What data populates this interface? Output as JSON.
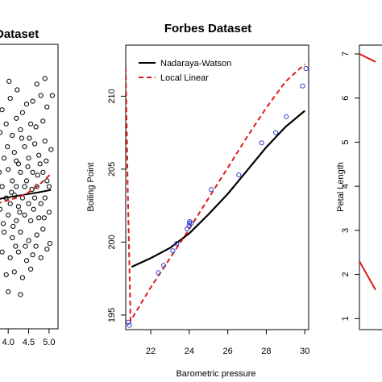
{
  "chart_data": [
    {
      "panel": "left",
      "type": "scatter",
      "title": "Dataset",
      "xlabel": "",
      "ylabel": "",
      "x_ticks": [
        "4.0",
        "4.5",
        "5.0"
      ],
      "x_tick_values": [
        4.0,
        4.5,
        5.0
      ],
      "xlim": [
        3.72,
        5.22
      ],
      "ylim": [
        0,
        1
      ],
      "series_colors": {
        "points": "#000000",
        "nw": "#000000",
        "ll": "#dd1a1a"
      },
      "points": [
        [
          4.9,
          0.88
        ],
        [
          4.8,
          0.82
        ],
        [
          4.95,
          0.78
        ],
        [
          4.85,
          0.73
        ],
        [
          4.7,
          0.86
        ],
        [
          4.6,
          0.8
        ],
        [
          4.45,
          0.79
        ],
        [
          4.55,
          0.72
        ],
        [
          4.35,
          0.76
        ],
        [
          4.3,
          0.7
        ],
        [
          4.2,
          0.74
        ],
        [
          4.1,
          0.68
        ],
        [
          4.05,
          0.81
        ],
        [
          3.95,
          0.72
        ],
        [
          3.85,
          0.77
        ],
        [
          3.8,
          0.69
        ],
        [
          4.15,
          0.62
        ],
        [
          4.25,
          0.58
        ],
        [
          4.4,
          0.64
        ],
        [
          4.5,
          0.6
        ],
        [
          4.65,
          0.65
        ],
        [
          4.75,
          0.61
        ],
        [
          4.9,
          0.66
        ],
        [
          5.05,
          0.63
        ],
        [
          3.9,
          0.6
        ],
        [
          4.0,
          0.56
        ],
        [
          4.1,
          0.52
        ],
        [
          4.2,
          0.5
        ],
        [
          4.3,
          0.55
        ],
        [
          4.45,
          0.52
        ],
        [
          4.6,
          0.55
        ],
        [
          4.7,
          0.5
        ],
        [
          4.85,
          0.55
        ],
        [
          4.95,
          0.52
        ],
        [
          5.0,
          0.5
        ],
        [
          3.85,
          0.5
        ],
        [
          3.95,
          0.46
        ],
        [
          4.05,
          0.44
        ],
        [
          4.15,
          0.47
        ],
        [
          4.25,
          0.43
        ],
        [
          4.35,
          0.46
        ],
        [
          4.5,
          0.44
        ],
        [
          4.65,
          0.46
        ],
        [
          4.8,
          0.44
        ],
        [
          4.9,
          0.46
        ],
        [
          3.8,
          0.42
        ],
        [
          4.0,
          0.4
        ],
        [
          4.2,
          0.38
        ],
        [
          4.4,
          0.4
        ],
        [
          4.55,
          0.38
        ],
        [
          4.75,
          0.39
        ],
        [
          5.0,
          0.41
        ],
        [
          3.9,
          0.34
        ],
        [
          4.1,
          0.32
        ],
        [
          4.3,
          0.34
        ],
        [
          4.5,
          0.31
        ],
        [
          4.7,
          0.33
        ],
        [
          4.85,
          0.35
        ],
        [
          5.02,
          0.3
        ],
        [
          3.85,
          0.27
        ],
        [
          4.05,
          0.25
        ],
        [
          4.25,
          0.27
        ],
        [
          4.45,
          0.24
        ],
        [
          4.6,
          0.26
        ],
        [
          4.8,
          0.25
        ],
        [
          4.95,
          0.28
        ],
        [
          3.95,
          0.19
        ],
        [
          4.15,
          0.2
        ],
        [
          4.35,
          0.18
        ],
        [
          4.55,
          0.21
        ],
        [
          4.0,
          0.13
        ],
        [
          4.3,
          0.12
        ],
        [
          4.2,
          0.59
        ],
        [
          4.4,
          0.5
        ],
        [
          4.62,
          0.42
        ],
        [
          3.98,
          0.64
        ],
        [
          4.12,
          0.36
        ],
        [
          4.78,
          0.58
        ],
        [
          4.33,
          0.67
        ],
        [
          4.52,
          0.67
        ],
        [
          3.88,
          0.37
        ],
        [
          4.68,
          0.71
        ],
        [
          4.88,
          0.39
        ],
        [
          4.08,
          0.48
        ],
        [
          4.58,
          0.49
        ],
        [
          4.28,
          0.41
        ],
        [
          3.78,
          0.55
        ],
        [
          4.93,
          0.59
        ],
        [
          5.08,
          0.82
        ],
        [
          4.02,
          0.87
        ],
        [
          4.22,
          0.84
        ],
        [
          4.48,
          0.57
        ],
        [
          4.72,
          0.54
        ],
        [
          4.18,
          0.29
        ],
        [
          4.42,
          0.29
        ],
        [
          4.68,
          0.29
        ]
      ],
      "nw_line": [
        [
          3.72,
          0.455
        ],
        [
          4.0,
          0.462
        ],
        [
          4.25,
          0.468
        ],
        [
          4.5,
          0.474
        ],
        [
          4.75,
          0.48
        ],
        [
          5.05,
          0.488
        ]
      ],
      "ll_line": [
        [
          3.72,
          0.44
        ],
        [
          4.0,
          0.452
        ],
        [
          4.25,
          0.462
        ],
        [
          4.5,
          0.48
        ],
        [
          4.75,
          0.505
        ],
        [
          5.05,
          0.545
        ]
      ]
    },
    {
      "panel": "center",
      "type": "line",
      "title": "Forbes Dataset",
      "xlabel": "Barometric pressure",
      "ylabel": "Boiling Point",
      "xlim": [
        20.7,
        30.2
      ],
      "ylim": [
        194,
        213.5
      ],
      "x_ticks": [
        22,
        24,
        26,
        28,
        30
      ],
      "y_ticks": [
        195,
        200,
        205,
        210
      ],
      "legend": {
        "position": "top-left",
        "entries": [
          "Nadaraya-Watson",
          "Local Linear"
        ]
      },
      "series_colors": {
        "nw": "#000000",
        "ll": "#dd1a1a",
        "points": "#3344cc"
      },
      "points": [
        [
          20.84,
          194.5
        ],
        [
          20.89,
          194.3
        ],
        [
          22.4,
          197.9
        ],
        [
          22.67,
          198.4
        ],
        [
          23.15,
          199.4
        ],
        [
          23.35,
          199.9
        ],
        [
          23.89,
          200.9
        ],
        [
          23.99,
          201.1
        ],
        [
          24.01,
          201.3
        ],
        [
          24.02,
          201.4
        ],
        [
          24.1,
          201.3
        ],
        [
          25.14,
          203.6
        ],
        [
          26.57,
          204.6
        ],
        [
          27.76,
          206.8
        ],
        [
          28.49,
          207.5
        ],
        [
          29.04,
          208.6
        ],
        [
          29.88,
          210.7
        ],
        [
          30.06,
          211.9
        ]
      ],
      "nw_line": [
        [
          21.0,
          198.3
        ],
        [
          22.0,
          198.9
        ],
        [
          23.0,
          199.6
        ],
        [
          24.0,
          200.6
        ],
        [
          25.0,
          201.9
        ],
        [
          26.0,
          203.3
        ],
        [
          27.0,
          204.9
        ],
        [
          28.0,
          206.5
        ],
        [
          29.0,
          207.9
        ],
        [
          30.0,
          209.0
        ]
      ],
      "ll_line": [
        [
          20.7,
          212.0
        ],
        [
          20.8,
          204.0
        ],
        [
          20.95,
          194.6
        ],
        [
          22.0,
          196.9
        ],
        [
          23.0,
          198.9
        ],
        [
          24.0,
          200.9
        ],
        [
          25.0,
          203.0
        ],
        [
          26.0,
          205.1
        ],
        [
          27.0,
          207.2
        ],
        [
          28.0,
          209.2
        ],
        [
          29.0,
          211.0
        ],
        [
          30.0,
          212.2
        ]
      ]
    },
    {
      "panel": "right",
      "type": "line",
      "title": "",
      "xlabel": "",
      "ylabel": "Petal Length",
      "ylim": [
        0.75,
        7.2
      ],
      "y_ticks": [
        1,
        2,
        3,
        4,
        5,
        6,
        7
      ],
      "series_colors": {
        "nw": "#000000",
        "ll": "#dd1a1a"
      },
      "ll_line": [
        [
          0.0,
          2.3
        ],
        [
          0.5,
          1.65
        ]
      ],
      "ll_line_top": [
        [
          0.0,
          7.0
        ],
        [
          0.5,
          6.82
        ]
      ]
    }
  ]
}
